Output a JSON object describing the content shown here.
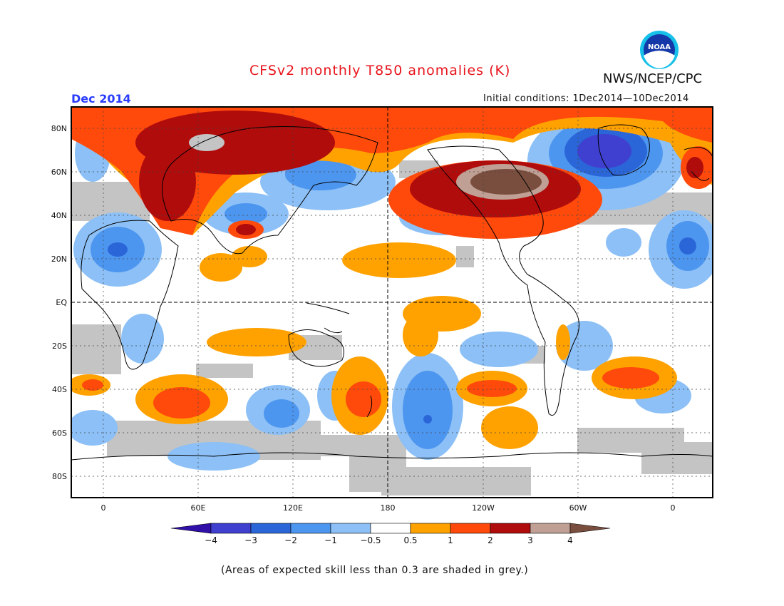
{
  "header": {
    "title": "CFSv2 monthly T850 anomalies (K)",
    "agency": "NWS/NCEP/CPC",
    "month": "Dec 2014",
    "initial_conditions": "Initial conditions: 1Dec2014—10Dec2014"
  },
  "logo": {
    "text": "NOAA"
  },
  "map": {
    "variable": "T850 anomaly",
    "units": "K",
    "lat_labels": [
      "80N",
      "60N",
      "40N",
      "20N",
      "EQ",
      "20S",
      "40S",
      "60S",
      "80S"
    ],
    "lon_labels": [
      "0",
      "60E",
      "120E",
      "180",
      "120W",
      "60W",
      "0"
    ],
    "grey_meaning": "expected skill less than 0.3"
  },
  "colorbar": {
    "tick_labels": [
      "−4",
      "−3",
      "−2",
      "−1",
      "−0.5",
      "0.5",
      "1",
      "2",
      "3",
      "4"
    ],
    "colors": [
      "#3010a8",
      "#4040d0",
      "#2a66d8",
      "#4d96f0",
      "#8cc0f6",
      "#ffffff",
      "#ffa200",
      "#ff4a0c",
      "#b00c0c",
      "#c0a094",
      "#7a4e3e"
    ]
  },
  "footnote": "(Areas of expected skill less than 0.3 are shaded in grey.)"
}
